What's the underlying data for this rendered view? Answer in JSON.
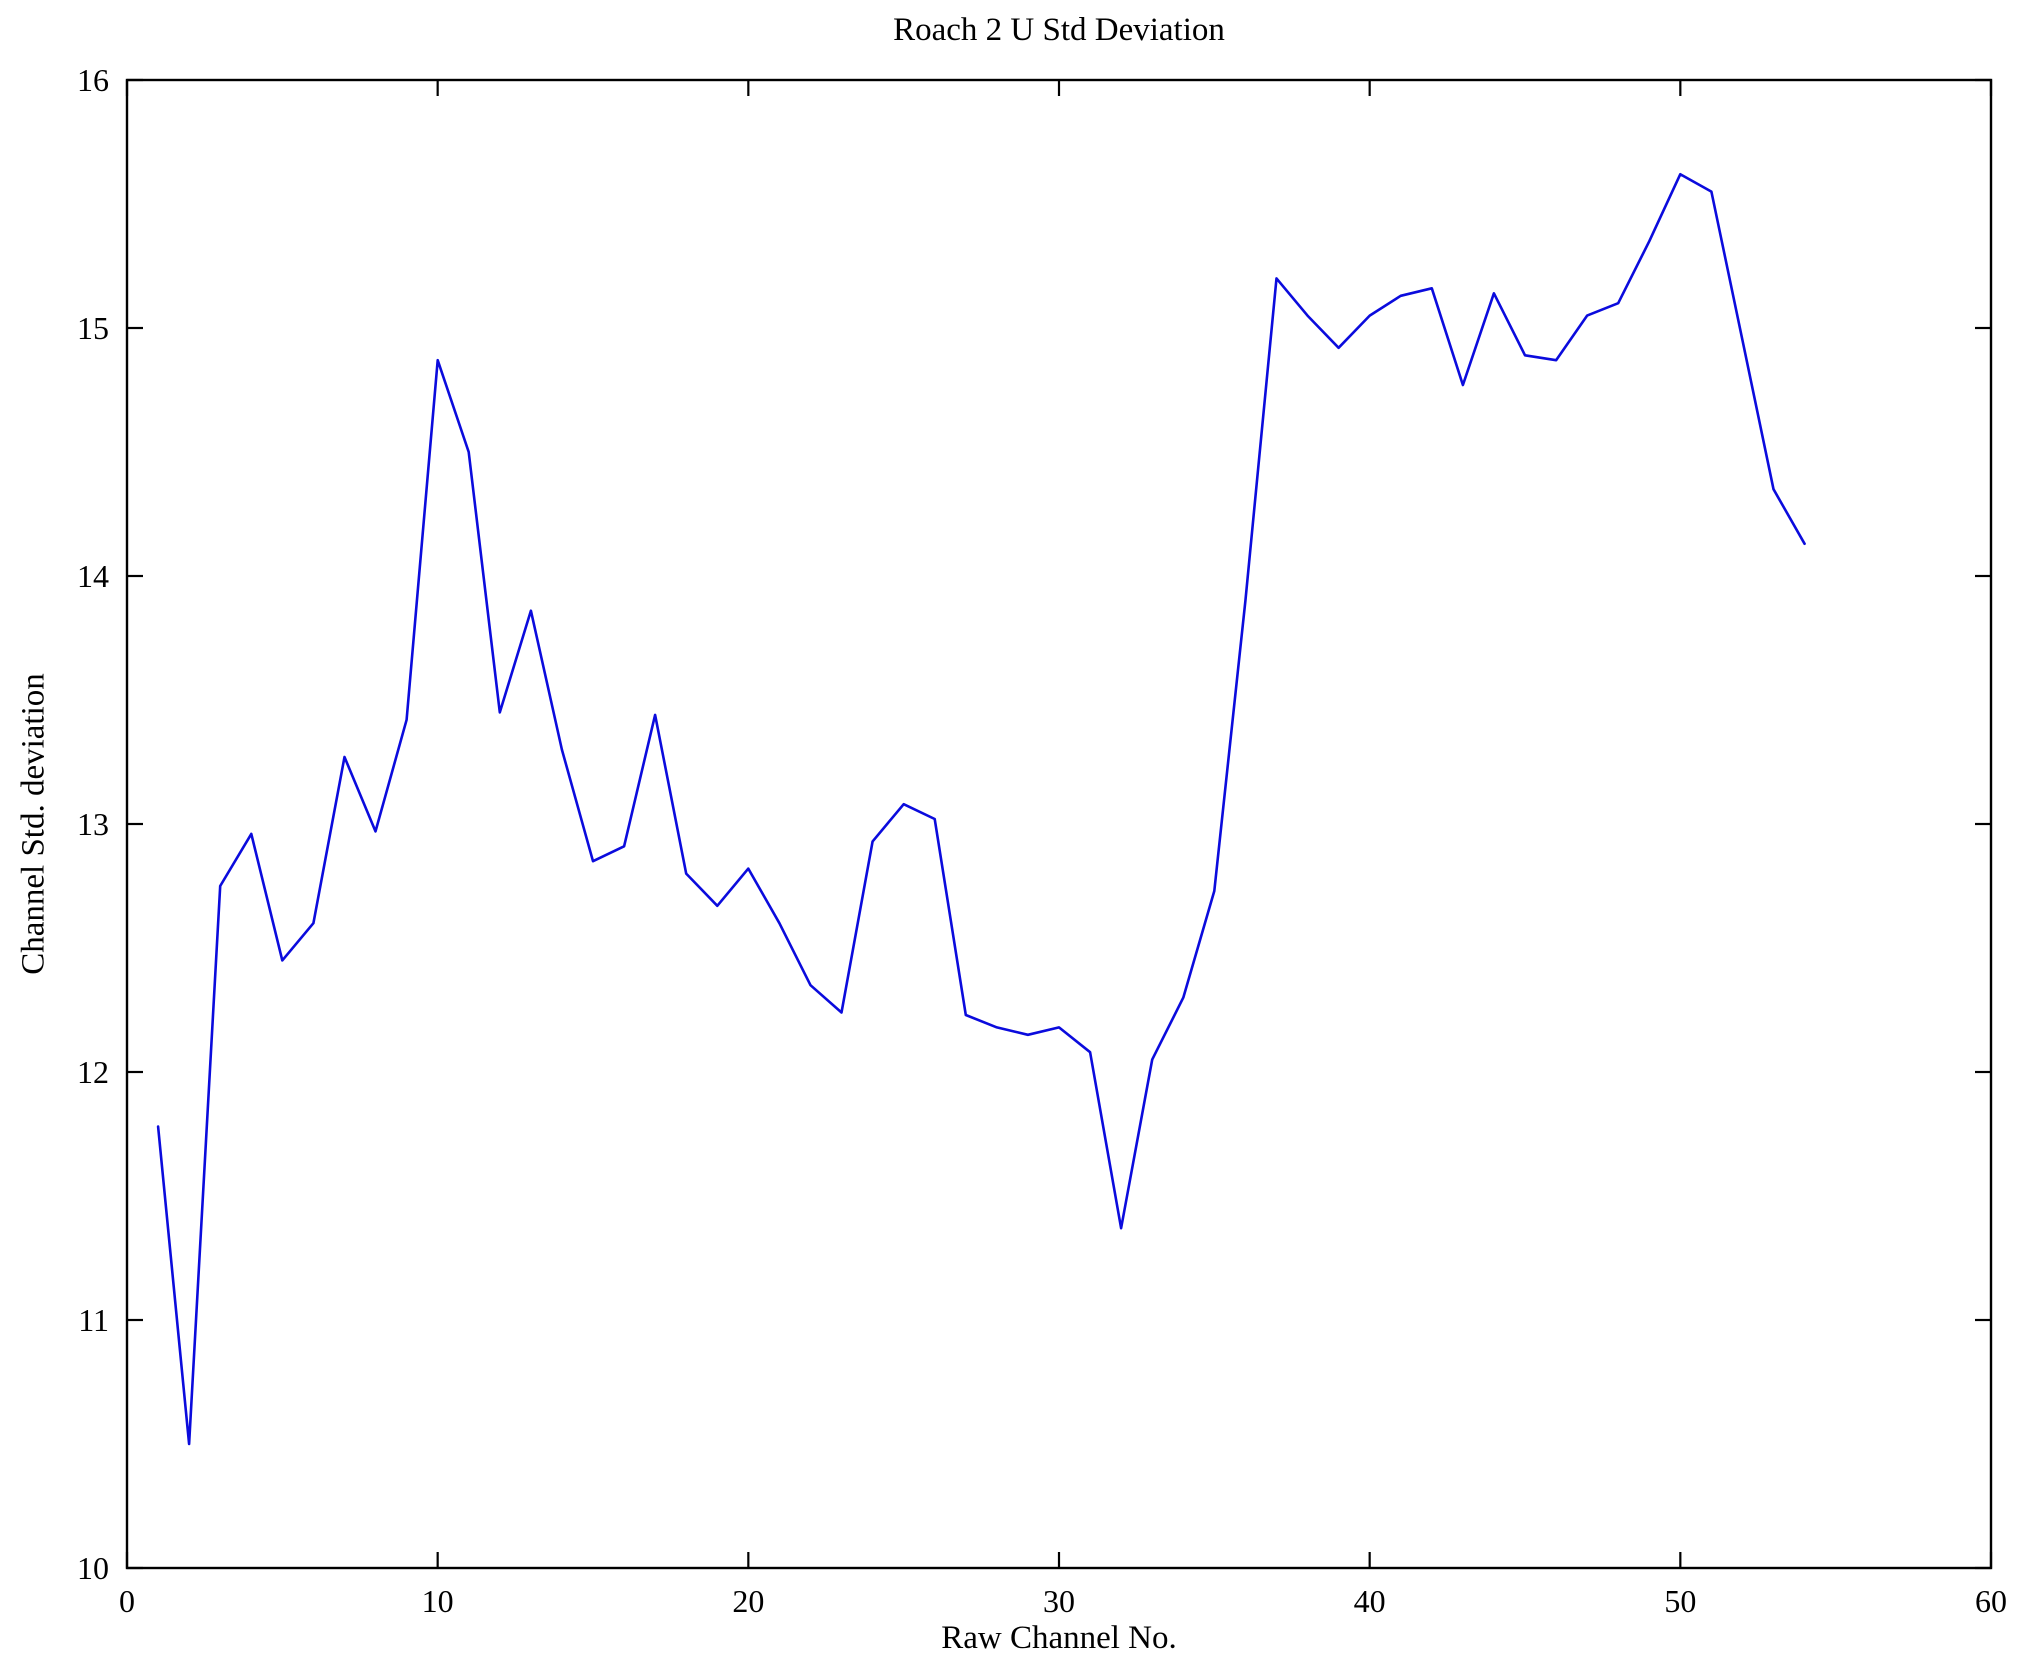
{
  "chart_data": {
    "type": "line",
    "title": "Roach 2 U Std Deviation",
    "xlabel": "Raw Channel No.",
    "ylabel": "Channel Std. deviation",
    "xlim": [
      0,
      60
    ],
    "ylim": [
      10,
      16
    ],
    "xticks": [
      0,
      10,
      20,
      30,
      40,
      50,
      60
    ],
    "yticks": [
      10,
      11,
      12,
      13,
      14,
      15,
      16
    ],
    "grid": false,
    "legend": "none",
    "line_color": "#0b0bdd",
    "axis_color": "#000000",
    "x": [
      1,
      2,
      3,
      4,
      5,
      6,
      7,
      8,
      9,
      10,
      11,
      12,
      13,
      14,
      15,
      16,
      17,
      18,
      19,
      20,
      21,
      22,
      23,
      24,
      25,
      26,
      27,
      28,
      29,
      30,
      31,
      32,
      33,
      34,
      35,
      36,
      37,
      38,
      39,
      40,
      41,
      42,
      43,
      44,
      45,
      46,
      47,
      48,
      49,
      50,
      51,
      52,
      53,
      54
    ],
    "y": [
      11.78,
      10.5,
      12.75,
      12.96,
      12.45,
      12.6,
      13.27,
      12.97,
      13.42,
      14.87,
      14.5,
      13.45,
      13.86,
      13.3,
      12.85,
      12.91,
      13.44,
      12.8,
      12.67,
      12.82,
      12.6,
      12.35,
      12.24,
      12.93,
      13.08,
      13.02,
      12.23,
      12.18,
      12.15,
      12.18,
      12.08,
      11.37,
      12.05,
      12.3,
      12.73,
      13.9,
      15.2,
      15.05,
      14.92,
      15.05,
      15.13,
      15.16,
      14.77,
      15.14,
      14.89,
      14.87,
      15.05,
      15.1,
      15.35,
      15.62,
      15.55,
      14.95,
      14.35,
      14.13
    ]
  }
}
